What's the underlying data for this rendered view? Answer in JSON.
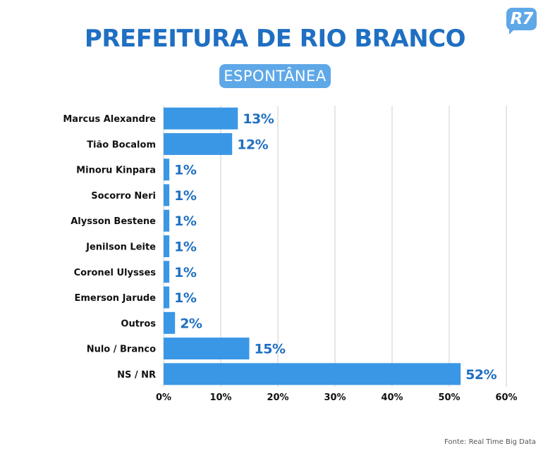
{
  "header": {
    "title": "PREFEITURA DE RIO BRANCO",
    "subtitle": "ESPONTÂNEA",
    "logo_text": "R7",
    "logo_color": "#5fa8e8",
    "title_color": "#1f6fc2"
  },
  "footer": {
    "source": "Fonte: Real Time Big Data"
  },
  "chart_data": {
    "type": "bar",
    "orientation": "horizontal",
    "title": "PREFEITURA DE RIO BRANCO",
    "subtitle": "ESPONTÂNEA",
    "categories": [
      "Marcus Alexandre",
      "Tião Bocalom",
      "Minoru Kinpara",
      "Socorro Neri",
      "Alysson Bestene",
      "Jenilson Leite",
      "Coronel Ulysses",
      "Emerson Jarude",
      "Outros",
      "Nulo / Branco",
      "NS / NR"
    ],
    "values": [
      13,
      12,
      1,
      1,
      1,
      1,
      1,
      1,
      2,
      15,
      52
    ],
    "value_labels": [
      "13%",
      "12%",
      "1%",
      "1%",
      "1%",
      "1%",
      "1%",
      "1%",
      "2%",
      "15%",
      "52%"
    ],
    "xlim": [
      0,
      60
    ],
    "xticks": [
      0,
      10,
      20,
      30,
      40,
      50,
      60
    ],
    "xtick_labels": [
      "0%",
      "10%",
      "20%",
      "30%",
      "40%",
      "50%",
      "60%"
    ],
    "xlabel": "",
    "ylabel": "",
    "grid": true,
    "bar_color": "#3a97e6",
    "label_color": "#1f6fc2",
    "grid_color": "#cfcfcf"
  }
}
